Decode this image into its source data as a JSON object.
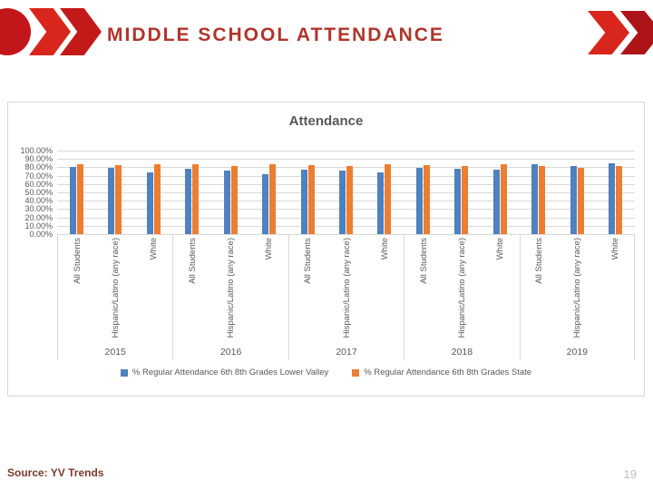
{
  "slide": {
    "title": "MIDDLE SCHOOL ATTENDANCE",
    "source_note": "Source: YV Trends",
    "page_number": "19"
  },
  "chart_data": {
    "type": "bar",
    "title": "Attendance",
    "ylim": [
      0,
      100
    ],
    "ytick_step": 10,
    "ytick_labels": [
      "100.00%",
      "90.00%",
      "80.00%",
      "70.00%",
      "60.00%",
      "50.00%",
      "40.00%",
      "30.00%",
      "20.00%",
      "10.00%",
      "0.00%"
    ],
    "grid": true,
    "legend_position": "bottom",
    "year_groups": [
      "2015",
      "2016",
      "2017",
      "2018",
      "2019"
    ],
    "categories": [
      "All Students",
      "Hispanic/Latino (any race)",
      "White"
    ],
    "series": [
      {
        "name": "% Regular Attendance  6th 8th Grades Lower Valley",
        "color": "#4E81BD",
        "values": [
          [
            80,
            79,
            74
          ],
          [
            78,
            76,
            72
          ],
          [
            77,
            76,
            74
          ],
          [
            79,
            78,
            77
          ],
          [
            84,
            81,
            85
          ]
        ]
      },
      {
        "name": "% Regular Attendance  6th 8th Grades State",
        "color": "#ED7D31",
        "values": [
          [
            84,
            83,
            84
          ],
          [
            84,
            82,
            84
          ],
          [
            83,
            81,
            84
          ],
          [
            83,
            82,
            84
          ],
          [
            82,
            79,
            81
          ]
        ]
      }
    ]
  },
  "colors": {
    "accent_red": "#D8261C",
    "accent_dark_red": "#AC1418",
    "title_text": "#B0352C",
    "chart_text": "#595959",
    "bar_blue": "#4E81BD",
    "bar_orange": "#ED7D31",
    "gridline": "#D9D9D9",
    "source_text": "#7B3B2E",
    "page_number_text": "#BFBFBF"
  }
}
